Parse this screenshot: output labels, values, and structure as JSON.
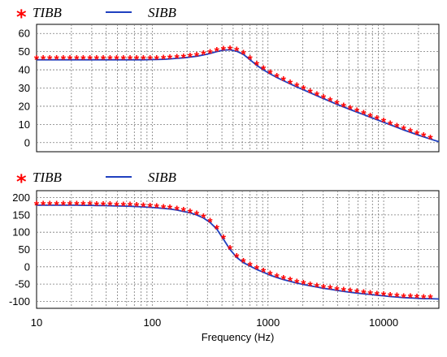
{
  "chart_data": [
    {
      "type": "line",
      "legend": [
        {
          "name": "TIBB",
          "marker": "asterisk",
          "color": "#ff0000"
        },
        {
          "name": "SIBB",
          "marker": "line",
          "color": "#1f3fbf"
        }
      ],
      "legend_position": "top-left",
      "x_scale": "log",
      "xlim": [
        10,
        30000
      ],
      "ylim": [
        -5,
        65
      ],
      "yticks": [
        0,
        10,
        20,
        30,
        40,
        50,
        60
      ],
      "grid": true,
      "series": [
        {
          "name": "TIBB",
          "x": [
            10,
            11.4,
            13,
            14.9,
            17,
            19.4,
            22.2,
            25.3,
            28.9,
            33,
            37.7,
            43.1,
            49.2,
            56.2,
            64.2,
            73.3,
            83.7,
            95.6,
            109,
            125,
            142,
            163,
            186,
            212,
            242,
            277,
            316,
            361,
            412,
            470,
            537,
            613,
            700,
            800,
            914,
            1043,
            1192,
            1361,
            1554,
            1775,
            2027,
            2315,
            2644,
            3020,
            3449,
            3939,
            4498,
            5137,
            5867,
            6700,
            7652,
            8740,
            9981,
            11400,
            13019,
            14868,
            16980,
            19392,
            22147,
            25293
          ],
          "y": [
            45.5,
            45.5,
            45.5,
            45.5,
            45.5,
            45.5,
            45.5,
            45.5,
            45.5,
            45.5,
            45.5,
            45.5,
            45.5,
            45.5,
            45.5,
            45.5,
            45.5,
            45.6,
            45.7,
            45.8,
            46,
            46.3,
            46.6,
            47,
            47.5,
            48.2,
            49,
            50,
            50.8,
            51,
            50.2,
            48.5,
            45.5,
            42.5,
            40,
            37.8,
            35.8,
            34,
            32.3,
            30.6,
            29,
            27.4,
            25.8,
            24.2,
            22.6,
            21.1,
            19.6,
            18.2,
            16.8,
            15.4,
            14,
            12.6,
            11.2,
            9.8,
            8.4,
            7,
            5.7,
            4.4,
            3.2,
            2
          ]
        },
        {
          "name": "SIBB",
          "x": [
            10,
            11.4,
            13,
            14.9,
            17,
            19.4,
            22.2,
            25.3,
            28.9,
            33,
            37.7,
            43.1,
            49.2,
            56.2,
            64.2,
            73.3,
            83.7,
            95.6,
            109,
            125,
            142,
            163,
            186,
            212,
            242,
            277,
            316,
            361,
            412,
            470,
            537,
            613,
            700,
            800,
            914,
            1043,
            1192,
            1361,
            1554,
            1775,
            2027,
            2315,
            2644,
            3020,
            3449,
            3939,
            4498,
            5137,
            5867,
            6700,
            7652,
            8740,
            9981,
            11400,
            13019,
            14868,
            16980,
            19392,
            22147,
            25293,
            30000
          ],
          "y": [
            45.5,
            45.5,
            45.5,
            45.5,
            45.5,
            45.5,
            45.5,
            45.5,
            45.5,
            45.5,
            45.5,
            45.5,
            45.5,
            45.5,
            45.5,
            45.5,
            45.5,
            45.6,
            45.7,
            45.8,
            46,
            46.3,
            46.6,
            47,
            47.5,
            48.2,
            49,
            50,
            50.8,
            51,
            50.2,
            48.5,
            45.5,
            42.5,
            40,
            37.8,
            35.8,
            34,
            32.3,
            30.6,
            29,
            27.4,
            25.8,
            24.2,
            22.6,
            21.1,
            19.6,
            18.2,
            16.8,
            15.4,
            14,
            12.6,
            11.2,
            9.8,
            8.4,
            7,
            5.7,
            4.4,
            3.2,
            2,
            0.5
          ]
        }
      ]
    },
    {
      "type": "line",
      "legend": [
        {
          "name": "TIBB",
          "marker": "asterisk",
          "color": "#ff0000"
        },
        {
          "name": "SIBB",
          "marker": "line",
          "color": "#1f3fbf"
        }
      ],
      "legend_position": "top-left",
      "x_scale": "log",
      "xlim": [
        10,
        30000
      ],
      "ylim": [
        -120,
        220
      ],
      "yticks": [
        -100,
        -50,
        0,
        50,
        100,
        150,
        200
      ],
      "xticks": [
        10,
        100,
        1000,
        10000
      ],
      "xlabel": "Frequency (Hz)",
      "grid": true,
      "series": [
        {
          "name": "TIBB",
          "x": [
            10,
            11.4,
            13,
            14.9,
            17,
            19.4,
            22.2,
            25.3,
            28.9,
            33,
            37.7,
            43.1,
            49.2,
            56.2,
            64.2,
            73.3,
            83.7,
            95.6,
            109,
            125,
            142,
            163,
            186,
            212,
            242,
            277,
            316,
            361,
            412,
            470,
            537,
            613,
            700,
            800,
            914,
            1043,
            1192,
            1361,
            1554,
            1775,
            2027,
            2315,
            2644,
            3020,
            3449,
            3939,
            4498,
            5137,
            5867,
            6700,
            7652,
            8740,
            9981,
            11400,
            13019,
            14868,
            16980,
            19392,
            22147,
            25293
          ],
          "y": [
            178,
            178,
            178,
            178,
            178,
            178,
            178,
            177.5,
            177.5,
            177,
            177,
            176.5,
            176,
            175.5,
            175,
            174,
            173,
            172,
            170.5,
            169,
            167,
            164,
            160,
            156,
            150,
            141,
            128,
            109,
            80,
            50,
            27,
            12,
            2,
            -8,
            -16,
            -24,
            -31,
            -37,
            -42,
            -47,
            -51,
            -55,
            -58.5,
            -62,
            -65,
            -68,
            -71,
            -73.5,
            -76,
            -78,
            -80,
            -82,
            -84,
            -86,
            -87.5,
            -89,
            -90,
            -91,
            -92,
            -92
          ]
        },
        {
          "name": "SIBB",
          "x": [
            10,
            11.4,
            13,
            14.9,
            17,
            19.4,
            22.2,
            25.3,
            28.9,
            33,
            37.7,
            43.1,
            49.2,
            56.2,
            64.2,
            73.3,
            83.7,
            95.6,
            109,
            125,
            142,
            163,
            186,
            212,
            242,
            277,
            316,
            361,
            412,
            470,
            537,
            613,
            700,
            800,
            914,
            1043,
            1192,
            1361,
            1554,
            1775,
            2027,
            2315,
            2644,
            3020,
            3449,
            3939,
            4498,
            5137,
            5867,
            6700,
            7652,
            8740,
            9981,
            11400,
            13019,
            14868,
            16980,
            19392,
            22147,
            25293,
            30000
          ],
          "y": [
            178,
            178,
            178,
            178,
            178,
            178,
            178,
            177.5,
            177.5,
            177,
            177,
            176.5,
            176,
            175.5,
            175,
            174,
            173,
            172,
            170.5,
            169,
            167,
            164,
            160,
            156,
            150,
            141,
            128,
            109,
            80,
            50,
            27,
            12,
            2,
            -8,
            -16,
            -24,
            -31,
            -37,
            -42,
            -47,
            -51,
            -55,
            -58.5,
            -62,
            -65,
            -68,
            -71,
            -73.5,
            -76,
            -78,
            -80,
            -82,
            -84,
            -86,
            -87.5,
            -89,
            -90,
            -91,
            -92,
            -92,
            -93
          ]
        }
      ]
    }
  ]
}
